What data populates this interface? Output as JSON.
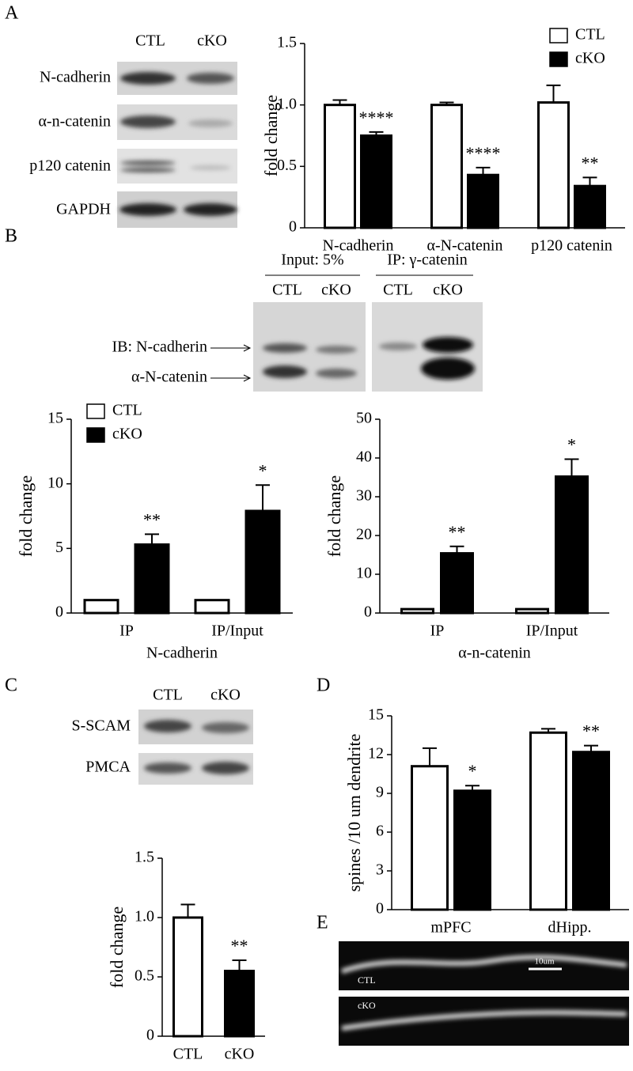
{
  "panels": [
    "A",
    "B",
    "C",
    "D",
    "E"
  ],
  "blots": {
    "A": {
      "columns": [
        "CTL",
        "cKO"
      ],
      "rows": [
        "N-cadherin",
        "α-n-catenin",
        "p120 catenin",
        "GAPDH"
      ]
    },
    "B": {
      "groups": [
        "Input: 5%",
        "IP: γ-catenin"
      ],
      "columns": [
        "CTL",
        "cKO",
        "CTL",
        "cKO"
      ],
      "rows": [
        "IB: N-cadherin",
        "α-N-catenin"
      ]
    },
    "C": {
      "columns": [
        "CTL",
        "cKO"
      ],
      "rows": [
        "S-SCAM",
        "PMCA"
      ]
    },
    "E": {
      "labels": [
        "CTL",
        "cKO"
      ],
      "scale": "10um"
    }
  },
  "chart_data": [
    {
      "type": "bar",
      "ylabel": "fold change",
      "categories": [
        "N-cadherin",
        "α-N-catenin",
        "p120 catenin"
      ],
      "series": [
        {
          "name": "CTL",
          "color": "#ffffff",
          "values": [
            1,
            1,
            1.02
          ],
          "errors": [
            0.04,
            0.02,
            0.14
          ]
        },
        {
          "name": "cKO",
          "color": "#000000",
          "values": [
            0.75,
            0.43,
            0.34
          ],
          "errors": [
            0.03,
            0.06,
            0.07
          ],
          "labels": [
            "****",
            "****",
            "**"
          ]
        }
      ],
      "ylim": [
        0,
        1.5
      ],
      "yticks": [
        0,
        0.5,
        {
          "value": 1,
          "label": "1.0"
        },
        1.5
      ],
      "legend": "upper right"
    },
    {
      "type": "bar",
      "ylabel": "fold change",
      "xlabel": "N-cadherin",
      "categories": [
        "IP",
        "IP/Input"
      ],
      "series": [
        {
          "name": "CTL",
          "color": "#ffffff",
          "values": [
            1,
            1
          ]
        },
        {
          "name": "cKO",
          "color": "#000000",
          "values": [
            5.3,
            7.9
          ],
          "errors": [
            0.8,
            2.0
          ],
          "labels": [
            "**",
            "*"
          ]
        }
      ],
      "ylim": [
        0,
        15
      ],
      "yticks": [
        0,
        5,
        10,
        15
      ],
      "legend": "upper left"
    },
    {
      "type": "bar",
      "ylabel": "fold change",
      "xlabel": "α-n-catenin",
      "categories": [
        "IP",
        "IP/Input"
      ],
      "series": [
        {
          "color": "#ffffff",
          "values": [
            1,
            1
          ]
        },
        {
          "color": "#000000",
          "values": [
            15.4,
            35.2
          ],
          "errors": [
            1.8,
            4.5
          ],
          "labels": [
            "**",
            "*"
          ]
        }
      ],
      "ylim": [
        0,
        50
      ],
      "yticks": [
        0,
        10,
        20,
        30,
        40,
        50
      ]
    },
    {
      "type": "bar",
      "ylabel": "fold change",
      "categories": [
        "CTL",
        "cKO"
      ],
      "values": [
        1,
        0.55
      ],
      "errors": [
        0.11,
        0.09
      ],
      "colors": [
        "#ffffff",
        "#000000"
      ],
      "labels": [
        null,
        "**"
      ],
      "ylim": [
        0,
        1.5
      ],
      "yticks": [
        0,
        0.5,
        {
          "value": 1,
          "label": "1.0"
        },
        1.5
      ]
    },
    {
      "type": "bar",
      "ylabel": "spines /10 um dendrite",
      "categories": [
        "mPFC",
        "dHipp."
      ],
      "series": [
        {
          "color": "#ffffff",
          "values": [
            11.1,
            13.7
          ],
          "errors": [
            1.4,
            0.3
          ]
        },
        {
          "color": "#000000",
          "values": [
            9.2,
            12.2
          ],
          "errors": [
            0.4,
            0.5
          ],
          "labels": [
            "*",
            "**"
          ]
        }
      ],
      "ylim": [
        0,
        15
      ],
      "yticks": [
        0,
        3,
        6,
        9,
        12,
        15
      ]
    }
  ]
}
